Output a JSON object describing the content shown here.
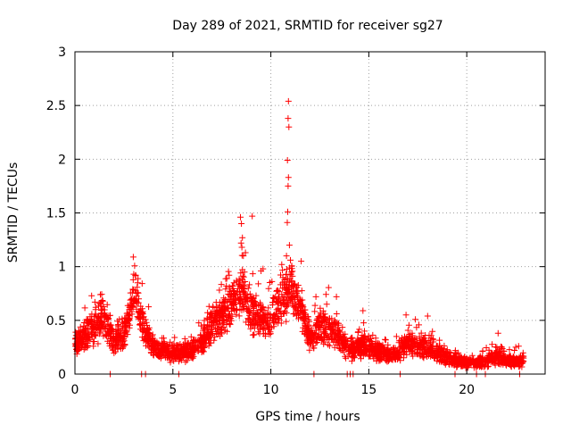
{
  "chart_data": {
    "type": "scatter",
    "title": "Day 289 of 2021, SRMTID for receiver sg27",
    "xlabel": "GPS time / hours",
    "ylabel": "SRMTID / TECUs",
    "xlim": [
      0,
      24
    ],
    "ylim": [
      0,
      3
    ],
    "x_ticks": [
      0,
      5,
      10,
      15,
      20
    ],
    "x_tick_labels": [
      "0",
      "5",
      "10",
      "15",
      "20"
    ],
    "y_ticks": [
      0,
      0.5,
      1,
      1.5,
      2,
      2.5,
      3
    ],
    "y_tick_labels": [
      "0",
      "0.5",
      "1",
      "1.5",
      "2",
      "2.5",
      "3"
    ],
    "grid": true,
    "marker": "+",
    "color": "#ff0000",
    "series": [
      {
        "name": "sg27",
        "envelope": {
          "x": [
            0,
            0.5,
            1,
            1.5,
            2,
            2.5,
            3,
            3.5,
            4,
            4.5,
            5,
            5.5,
            6,
            6.5,
            7,
            7.5,
            8,
            8.5,
            9,
            9.5,
            10,
            10.5,
            11,
            11.5,
            12,
            12.5,
            13,
            13.5,
            14,
            14.5,
            15,
            15.5,
            16,
            16.5,
            17,
            17.5,
            18,
            18.5,
            19,
            19.5,
            20,
            20.5,
            21,
            21.5,
            22,
            22.5,
            22.9
          ],
          "y": [
            0.28,
            0.35,
            0.45,
            0.5,
            0.3,
            0.35,
            0.75,
            0.45,
            0.25,
            0.22,
            0.2,
            0.2,
            0.22,
            0.3,
            0.45,
            0.55,
            0.65,
            0.8,
            0.6,
            0.5,
            0.5,
            0.65,
            0.8,
            0.6,
            0.35,
            0.45,
            0.4,
            0.35,
            0.2,
            0.25,
            0.25,
            0.2,
            0.18,
            0.2,
            0.28,
            0.25,
            0.25,
            0.2,
            0.15,
            0.12,
            0.1,
            0.1,
            0.12,
            0.18,
            0.12,
            0.12,
            0.12
          ],
          "spread": [
            0.12,
            0.15,
            0.2,
            0.22,
            0.12,
            0.15,
            0.18,
            0.2,
            0.12,
            0.1,
            0.1,
            0.1,
            0.1,
            0.12,
            0.2,
            0.2,
            0.22,
            0.25,
            0.25,
            0.2,
            0.2,
            0.25,
            0.25,
            0.2,
            0.15,
            0.18,
            0.18,
            0.15,
            0.1,
            0.12,
            0.12,
            0.1,
            0.08,
            0.1,
            0.15,
            0.12,
            0.12,
            0.1,
            0.08,
            0.06,
            0.05,
            0.05,
            0.06,
            0.1,
            0.06,
            0.06,
            0.06
          ],
          "n_points": 3000
        },
        "peaks": [
          {
            "x": 10.9,
            "y": 2.54
          },
          {
            "x": 10.88,
            "y": 2.38
          },
          {
            "x": 10.92,
            "y": 2.3
          },
          {
            "x": 10.85,
            "y": 1.99
          },
          {
            "x": 10.9,
            "y": 1.83
          },
          {
            "x": 10.88,
            "y": 1.75
          },
          {
            "x": 10.86,
            "y": 1.51
          },
          {
            "x": 10.84,
            "y": 1.41
          },
          {
            "x": 10.95,
            "y": 1.2
          },
          {
            "x": 10.8,
            "y": 1.1
          },
          {
            "x": 11.0,
            "y": 1.06
          },
          {
            "x": 11.05,
            "y": 0.95
          },
          {
            "x": 9.05,
            "y": 1.47
          },
          {
            "x": 8.45,
            "y": 1.46
          },
          {
            "x": 8.5,
            "y": 1.4
          },
          {
            "x": 8.55,
            "y": 1.27
          },
          {
            "x": 8.48,
            "y": 1.22
          },
          {
            "x": 8.52,
            "y": 1.18
          },
          {
            "x": 8.6,
            "y": 1.1
          },
          {
            "x": 9.5,
            "y": 0.96
          },
          {
            "x": 9.6,
            "y": 0.98
          },
          {
            "x": 11.55,
            "y": 1.05
          },
          {
            "x": 3.0,
            "y": 0.93
          },
          {
            "x": 3.1,
            "y": 0.92
          },
          {
            "x": 3.2,
            "y": 0.85
          },
          {
            "x": 1.3,
            "y": 0.74
          },
          {
            "x": 0.85,
            "y": 0.73
          },
          {
            "x": 12.3,
            "y": 0.72
          },
          {
            "x": 13.35,
            "y": 0.72
          },
          {
            "x": 12.85,
            "y": 0.65
          },
          {
            "x": 14.7,
            "y": 0.59
          },
          {
            "x": 16.9,
            "y": 0.55
          },
          {
            "x": 18.0,
            "y": 0.54
          },
          {
            "x": 21.6,
            "y": 0.38
          },
          {
            "x": 22.5,
            "y": 0.25
          }
        ],
        "zero_points_x": [
          1.8,
          3.4,
          3.6,
          5.3,
          12.2,
          13.9,
          14.05,
          14.2,
          16.6,
          19.4,
          20.5,
          20.95,
          22.7
        ]
      }
    ]
  }
}
